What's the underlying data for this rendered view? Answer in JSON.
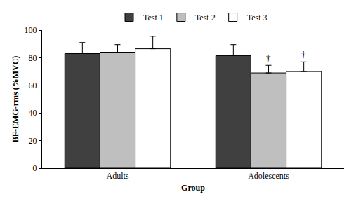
{
  "chart_data": {
    "type": "bar",
    "x_label": "Group",
    "y_label": "BF-EMG-rms (%MVC)",
    "categories": [
      "Adults",
      "Adolescents"
    ],
    "series": [
      {
        "name": "Test 1",
        "color": "#404040",
        "values": [
          83,
          81.5
        ],
        "errors": [
          8,
          8
        ]
      },
      {
        "name": "Test 2",
        "color": "#bfbfbf",
        "values": [
          84,
          69
        ],
        "errors": [
          5.5,
          5.5
        ]
      },
      {
        "name": "Test 3",
        "color": "#ffffff",
        "values": [
          86.5,
          70
        ],
        "errors": [
          9,
          7
        ]
      }
    ],
    "annotations": [
      {
        "category": "Adolescents",
        "series": "Test 2",
        "text": "†"
      },
      {
        "category": "Adolescents",
        "series": "Test 3",
        "text": "†"
      }
    ],
    "ylim": [
      0,
      100
    ],
    "yticks": [
      0,
      20,
      40,
      60,
      80,
      100
    ],
    "grid": false,
    "legend": "top"
  }
}
